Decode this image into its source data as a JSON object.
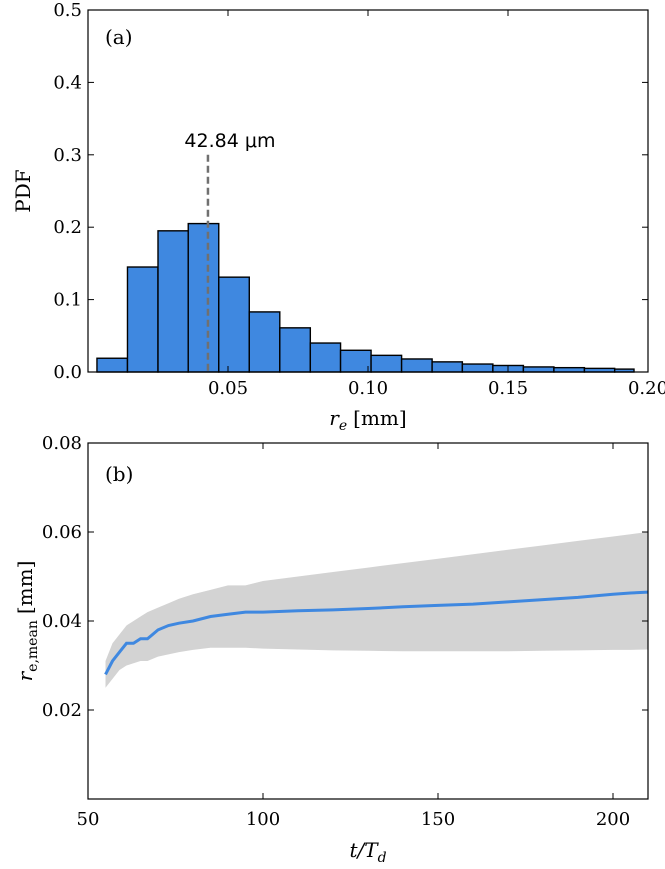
{
  "chart_data": [
    {
      "type": "bar",
      "panel_label": "(a)",
      "xlabel_main": "r",
      "xlabel_sub": "e",
      "xlabel_unit": "[mm]",
      "ylabel": "PDF",
      "xlim": [
        0.0,
        0.2
      ],
      "ylim": [
        0.0,
        0.5
      ],
      "xticks": [
        0.05,
        0.1,
        0.15,
        0.2
      ],
      "xtick_labels": [
        "0.05",
        "0.10",
        "0.15",
        "0.20"
      ],
      "yticks": [
        0.0,
        0.1,
        0.2,
        0.3,
        0.4,
        0.5
      ],
      "ytick_labels": [
        "0.0",
        "0.1",
        "0.2",
        "0.3",
        "0.4",
        "0.5"
      ],
      "bin_edges": [
        0.0032,
        0.0141,
        0.025,
        0.0358,
        0.0467,
        0.0576,
        0.0685,
        0.0794,
        0.0902,
        0.1011,
        0.112,
        0.1229,
        0.1337,
        0.1446,
        0.1555,
        0.1664,
        0.1773,
        0.1881,
        0.195
      ],
      "values": [
        0.019,
        0.145,
        0.195,
        0.205,
        0.131,
        0.083,
        0.061,
        0.04,
        0.03,
        0.023,
        0.018,
        0.014,
        0.011,
        0.009,
        0.007,
        0.006,
        0.005,
        0.004
      ],
      "annotation": {
        "text": "42.84 μm",
        "x": 0.04284,
        "line_top": 0.3
      },
      "grid": false
    },
    {
      "type": "line",
      "panel_label": "(b)",
      "xlabel_main": "t/T",
      "xlabel_sub": "d",
      "ylabel_main": "r",
      "ylabel_sub": "e,mean",
      "ylabel_unit": "[mm]",
      "xlim": [
        50,
        210
      ],
      "ylim": [
        0.0,
        0.08
      ],
      "xticks": [
        50,
        100,
        150,
        200
      ],
      "xtick_labels": [
        "50",
        "100",
        "150",
        "200"
      ],
      "yticks": [
        0.02,
        0.04,
        0.06,
        0.08
      ],
      "ytick_labels": [
        "0.02",
        "0.04",
        "0.06",
        "0.08"
      ],
      "series": [
        {
          "x": [
            55,
            57,
            59,
            61,
            63,
            65,
            67,
            70,
            73,
            76,
            80,
            85,
            90,
            95,
            100,
            110,
            120,
            130,
            140,
            150,
            160,
            170,
            180,
            190,
            200,
            205,
            210
          ],
          "mean": [
            0.028,
            0.031,
            0.033,
            0.035,
            0.035,
            0.036,
            0.036,
            0.038,
            0.039,
            0.0395,
            0.04,
            0.041,
            0.0415,
            0.042,
            0.042,
            0.0423,
            0.0425,
            0.0428,
            0.0432,
            0.0435,
            0.0438,
            0.0443,
            0.0448,
            0.0453,
            0.046,
            0.0463,
            0.0465
          ],
          "lower": [
            0.025,
            0.027,
            0.029,
            0.03,
            0.0305,
            0.031,
            0.031,
            0.032,
            0.0325,
            0.033,
            0.0335,
            0.034,
            0.034,
            0.034,
            0.0338,
            0.0336,
            0.0334,
            0.0333,
            0.0332,
            0.0332,
            0.0332,
            0.0332,
            0.0333,
            0.0334,
            0.0335,
            0.0335,
            0.0336
          ],
          "upper": [
            0.031,
            0.035,
            0.037,
            0.039,
            0.04,
            0.041,
            0.042,
            0.043,
            0.044,
            0.045,
            0.046,
            0.047,
            0.048,
            0.048,
            0.049,
            0.05,
            0.051,
            0.052,
            0.053,
            0.054,
            0.055,
            0.056,
            0.057,
            0.058,
            0.059,
            0.0595,
            0.06
          ]
        }
      ],
      "line_color": "#3f88e0",
      "band_color": "#d3d3d3",
      "grid": false
    }
  ],
  "colors": {
    "bar": "#3f88e0",
    "line": "#3f88e0",
    "band": "#d3d3d3",
    "marker_line": "#707070"
  }
}
